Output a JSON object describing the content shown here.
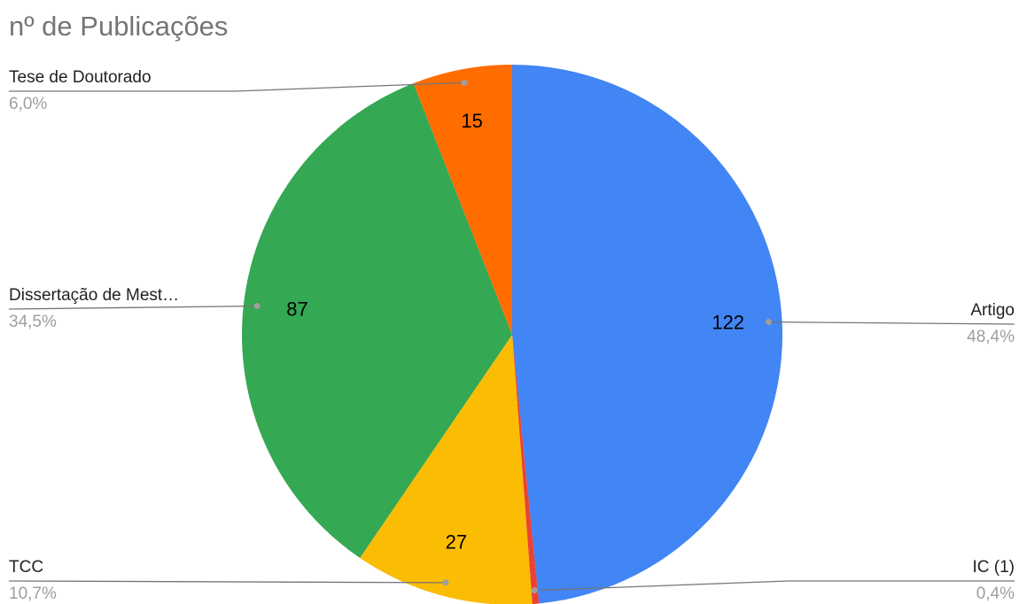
{
  "chart_data": {
    "type": "pie",
    "title": "nº de Publicações",
    "categories": [
      "Artigo",
      "IC (1)",
      "TCC",
      "Dissertação de Mest…",
      "Tese de Doutorado"
    ],
    "values": [
      122,
      1,
      27,
      87,
      15
    ],
    "percent_labels": [
      "48,4%",
      "0,4%",
      "10,7%",
      "34,5%",
      "6,0%"
    ],
    "colors": [
      "#4285f4",
      "#ea4335",
      "#fbbc04",
      "#34a853",
      "#ff6d01"
    ]
  }
}
